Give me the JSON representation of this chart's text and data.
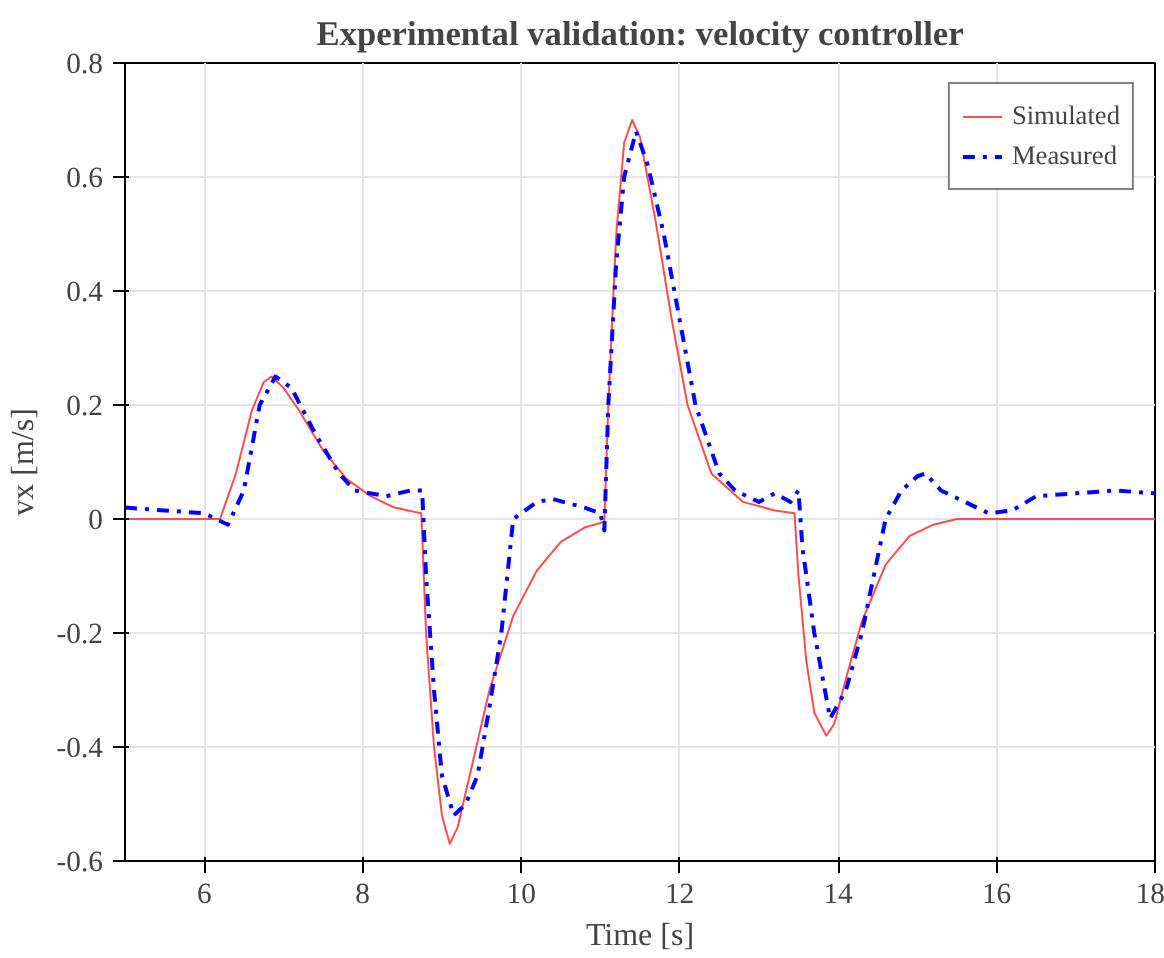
{
  "chart_data": {
    "type": "line",
    "title": "Experimental validation: velocity controller",
    "xlabel": "Time [s]",
    "ylabel": "vx [m/s]",
    "xlim": [
      5,
      18
    ],
    "ylim": [
      -0.6,
      0.8
    ],
    "xticks": [
      6,
      8,
      10,
      12,
      14,
      16,
      18
    ],
    "yticks": [
      -0.6,
      -0.4,
      -0.2,
      0,
      0.2,
      0.4,
      0.6,
      0.8
    ],
    "grid": true,
    "legend": "top right",
    "marker": "none",
    "series": [
      {
        "name": "Simulated",
        "color": "#ff4d4d",
        "line_style": "solid",
        "x": [
          5,
          6,
          6.2,
          6.4,
          6.6,
          6.75,
          6.85,
          7.0,
          7.2,
          7.5,
          7.8,
          8.1,
          8.4,
          8.74,
          8.8,
          8.9,
          9.0,
          9.1,
          9.2,
          9.4,
          9.6,
          9.9,
          10.2,
          10.5,
          10.8,
          11.05,
          11.1,
          11.2,
          11.3,
          11.4,
          11.5,
          11.7,
          11.9,
          12.1,
          12.4,
          12.8,
          13.2,
          13.45,
          13.5,
          13.6,
          13.7,
          13.85,
          13.95,
          14.1,
          14.3,
          14.6,
          14.9,
          15.2,
          15.5,
          16,
          17,
          18
        ],
        "values": [
          0,
          0,
          0,
          0.08,
          0.19,
          0.24,
          0.25,
          0.23,
          0.19,
          0.12,
          0.07,
          0.04,
          0.02,
          0.01,
          -0.2,
          -0.4,
          -0.52,
          -0.57,
          -0.54,
          -0.42,
          -0.3,
          -0.17,
          -0.09,
          -0.04,
          -0.015,
          -0.005,
          0.2,
          0.5,
          0.66,
          0.7,
          0.67,
          0.52,
          0.35,
          0.2,
          0.08,
          0.03,
          0.015,
          0.01,
          -0.1,
          -0.25,
          -0.34,
          -0.38,
          -0.36,
          -0.28,
          -0.18,
          -0.08,
          -0.03,
          -0.01,
          0,
          0,
          0,
          0
        ]
      },
      {
        "name": "Measured",
        "color": "#0000ff",
        "line_style": "dashdot",
        "x": [
          5,
          5.5,
          6,
          6.3,
          6.5,
          6.7,
          6.9,
          7.1,
          7.4,
          7.7,
          7.9,
          8.3,
          8.6,
          8.75,
          8.8,
          8.9,
          9.0,
          9.15,
          9.3,
          9.45,
          9.6,
          9.75,
          9.9,
          10.2,
          10.4,
          10.8,
          11.0,
          11.05,
          11.1,
          11.2,
          11.3,
          11.45,
          11.6,
          11.8,
          12.0,
          12.2,
          12.5,
          12.7,
          13.0,
          13.2,
          13.4,
          13.5,
          13.55,
          13.7,
          13.9,
          14.1,
          14.3,
          14.6,
          14.8,
          15.0,
          15.1,
          15.3,
          15.6,
          15.9,
          16.2,
          16.5,
          17.0,
          17.5,
          18
        ],
        "values": [
          0.02,
          0.015,
          0.01,
          -0.01,
          0.05,
          0.2,
          0.25,
          0.23,
          0.15,
          0.08,
          0.05,
          0.04,
          0.05,
          0.05,
          -0.1,
          -0.3,
          -0.45,
          -0.52,
          -0.5,
          -0.45,
          -0.33,
          -0.2,
          0,
          0.03,
          0.035,
          0.02,
          0.01,
          -0.02,
          0.2,
          0.45,
          0.6,
          0.68,
          0.62,
          0.5,
          0.35,
          0.2,
          0.08,
          0.05,
          0.03,
          0.045,
          0.03,
          0.05,
          -0.05,
          -0.2,
          -0.35,
          -0.3,
          -0.2,
          0,
          0.05,
          0.075,
          0.08,
          0.05,
          0.03,
          0.01,
          0.015,
          0.04,
          0.045,
          0.05,
          0.045
        ]
      }
    ]
  }
}
